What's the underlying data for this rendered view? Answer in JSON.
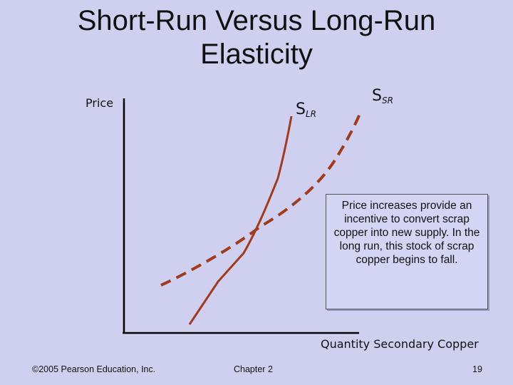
{
  "title": {
    "line1": "Short-Run Versus Long-Run",
    "line2": "Elasticity"
  },
  "chart_data": {
    "type": "line",
    "xlabel": "Quantity Secondary Copper",
    "ylabel": "Price",
    "grid": false,
    "series": [
      {
        "name": "SLR",
        "base": "S",
        "subscript": "LR",
        "style": "solid",
        "color": "#a33a1c"
      },
      {
        "name": "SSR",
        "base": "S",
        "subscript": "SR",
        "style": "dashed",
        "color": "#a33a1c"
      }
    ]
  },
  "callout": {
    "text": "Price increases provide an incentive to convert scrap copper into new supply. In the long run, this stock of scrap copper begins to fall."
  },
  "footer": {
    "copyright": "©2005 Pearson Education, Inc.",
    "chapter": "Chapter 2",
    "page": "19"
  }
}
